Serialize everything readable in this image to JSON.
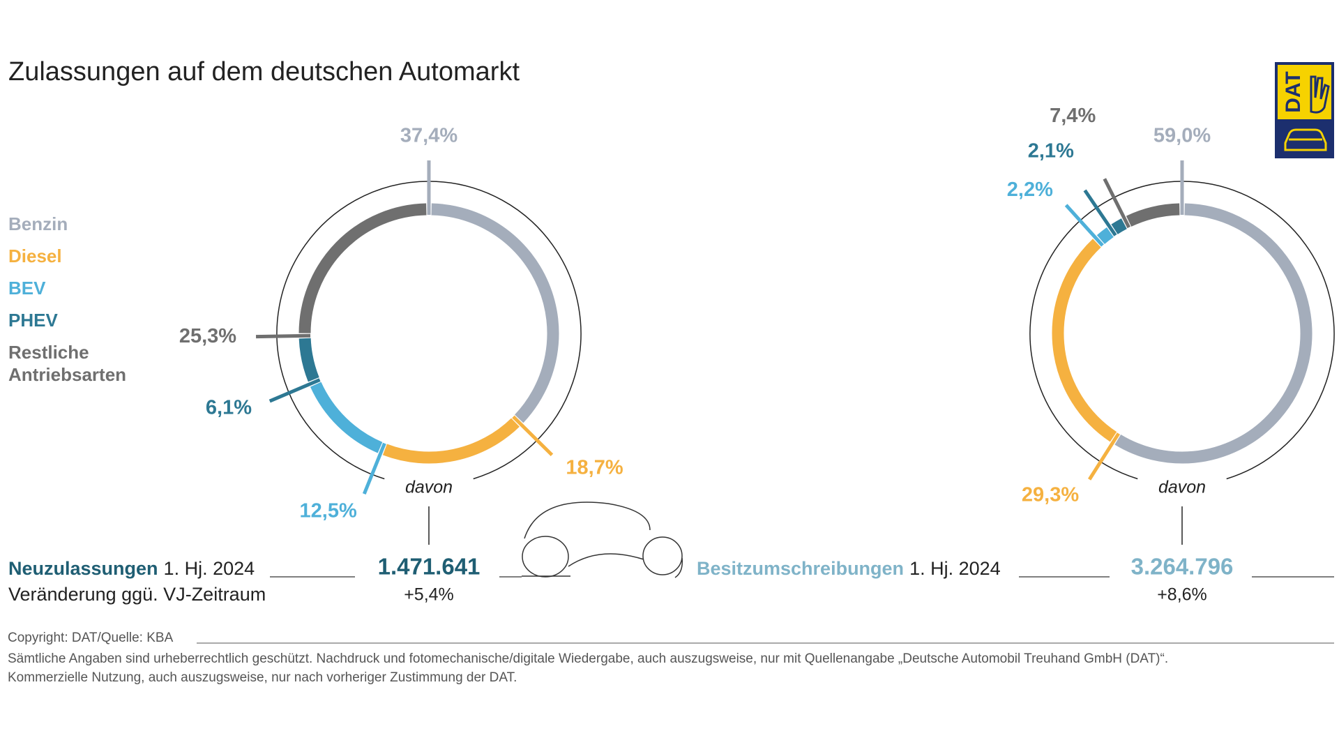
{
  "title": "Zulassungen auf dem deutschen Automarkt",
  "logo": "DAT",
  "legend": {
    "items": [
      "Benzin",
      "Diesel",
      "BEV",
      "PHEV",
      "Restliche Antriebsarten"
    ],
    "colors": [
      "#a4adbb",
      "#f5b140",
      "#4eb0d9",
      "#2d7893",
      "#6f6f6f"
    ]
  },
  "chart_data": [
    {
      "type": "donut",
      "center_label": "davon",
      "values": [
        37.4,
        18.7,
        12.5,
        6.1,
        25.3
      ],
      "value_labels": [
        "37,4%",
        "18,7%",
        "12,5%",
        "6,1%",
        "25,3%"
      ]
    },
    {
      "type": "donut",
      "center_label": "davon",
      "values": [
        59.0,
        29.3,
        2.2,
        2.1,
        7.4
      ],
      "value_labels": [
        "59,0%",
        "29,3%",
        "2,2%",
        "2,1%",
        "7,4%"
      ]
    }
  ],
  "summary": [
    {
      "label": "Neuzulassungen",
      "period": "1. Hj. 2024",
      "total": "1.471.641",
      "change_label": "Veränderung ggü. VJ-Zeitraum",
      "change": "+5,4%"
    },
    {
      "label": "Besitzumschreibungen",
      "period": "1. Hj. 2024",
      "total": "3.264.796",
      "change": "+8,6%"
    }
  ],
  "footer": {
    "source": "Copyright: DAT/Quelle: KBA",
    "notice": [
      "Sämtliche Angaben sind urheberrechtlich geschützt. Nachdruck und fotomechanische/digitale Wiedergabe, auch auszugsweise, nur mit Quellenangabe „Deutsche Automobil Treuhand GmbH (DAT)“.",
      "Kommerzielle Nutzung, auch auszugsweise, nur nach vorheriger Zustimmung der DAT."
    ]
  }
}
